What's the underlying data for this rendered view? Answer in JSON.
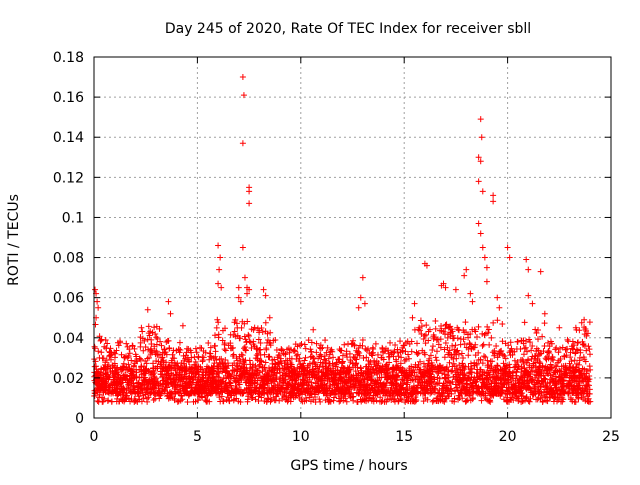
{
  "chart_data": {
    "type": "scatter",
    "title": "Day 245 of 2020, Rate Of TEC Index for receiver sbll",
    "xlabel": "GPS time / hours",
    "ylabel": "ROTI / TECUs",
    "xlim": [
      0,
      25
    ],
    "ylim": [
      0,
      0.18
    ],
    "xticks": [
      0,
      5,
      10,
      15,
      20,
      25
    ],
    "xtick_labels": [
      "0",
      "5",
      "10",
      "15",
      "20",
      "25"
    ],
    "yticks": [
      0,
      0.02,
      0.04,
      0.06,
      0.08,
      0.1,
      0.12,
      0.14,
      0.16,
      0.18
    ],
    "ytick_labels": [
      "0",
      "0.02",
      "0.04",
      "0.06",
      "0.08",
      "0.1",
      "0.12",
      "0.14",
      "0.16",
      "0.18"
    ],
    "grid": true,
    "marker": "+",
    "color": "#ff0000",
    "series": [
      {
        "name": "ROTI",
        "note": "dense band of points between ~0.01 and ~0.035 TECU/min from 0 to 24 h, plus these notable outliers",
        "band": {
          "x_start": 0,
          "x_end": 24,
          "y_low": 0.008,
          "y_high": 0.035
        },
        "outliers": [
          [
            0.05,
            0.064
          ],
          [
            0.1,
            0.062
          ],
          [
            0.15,
            0.058
          ],
          [
            0.2,
            0.055
          ],
          [
            0.1,
            0.05
          ],
          [
            2.6,
            0.054
          ],
          [
            3.6,
            0.058
          ],
          [
            3.7,
            0.052
          ],
          [
            4.3,
            0.046
          ],
          [
            6.0,
            0.086
          ],
          [
            6.1,
            0.08
          ],
          [
            6.05,
            0.074
          ],
          [
            6.0,
            0.067
          ],
          [
            6.15,
            0.065
          ],
          [
            7.0,
            0.065
          ],
          [
            7.0,
            0.06
          ],
          [
            7.1,
            0.058
          ],
          [
            7.2,
            0.085
          ],
          [
            7.3,
            0.07
          ],
          [
            7.2,
            0.17
          ],
          [
            7.25,
            0.161
          ],
          [
            7.2,
            0.137
          ],
          [
            7.5,
            0.115
          ],
          [
            7.5,
            0.113
          ],
          [
            7.5,
            0.107
          ],
          [
            7.4,
            0.065
          ],
          [
            7.5,
            0.064
          ],
          [
            7.4,
            0.062
          ],
          [
            8.2,
            0.064
          ],
          [
            8.3,
            0.061
          ],
          [
            8.5,
            0.05
          ],
          [
            10.6,
            0.044
          ],
          [
            12.8,
            0.055
          ],
          [
            12.9,
            0.06
          ],
          [
            13.0,
            0.07
          ],
          [
            13.1,
            0.057
          ],
          [
            15.4,
            0.05
          ],
          [
            15.5,
            0.057
          ],
          [
            16.0,
            0.077
          ],
          [
            16.1,
            0.076
          ],
          [
            16.8,
            0.066
          ],
          [
            16.9,
            0.067
          ],
          [
            17.0,
            0.065
          ],
          [
            17.5,
            0.064
          ],
          [
            17.9,
            0.071
          ],
          [
            18.0,
            0.074
          ],
          [
            18.2,
            0.062
          ],
          [
            18.3,
            0.058
          ],
          [
            18.6,
            0.097
          ],
          [
            18.7,
            0.092
          ],
          [
            18.7,
            0.149
          ],
          [
            18.75,
            0.14
          ],
          [
            18.6,
            0.13
          ],
          [
            18.7,
            0.128
          ],
          [
            18.6,
            0.118
          ],
          [
            18.8,
            0.113
          ],
          [
            18.8,
            0.085
          ],
          [
            18.9,
            0.08
          ],
          [
            19.0,
            0.075
          ],
          [
            19.0,
            0.068
          ],
          [
            19.3,
            0.111
          ],
          [
            19.3,
            0.108
          ],
          [
            19.5,
            0.06
          ],
          [
            19.6,
            0.055
          ],
          [
            20.0,
            0.085
          ],
          [
            20.1,
            0.08
          ],
          [
            20.9,
            0.079
          ],
          [
            21.0,
            0.074
          ],
          [
            21.6,
            0.073
          ],
          [
            21.0,
            0.061
          ],
          [
            21.2,
            0.057
          ],
          [
            21.8,
            0.052
          ],
          [
            22.5,
            0.045
          ],
          [
            23.3,
            0.045
          ],
          [
            23.7,
            0.049
          ]
        ]
      }
    ]
  }
}
